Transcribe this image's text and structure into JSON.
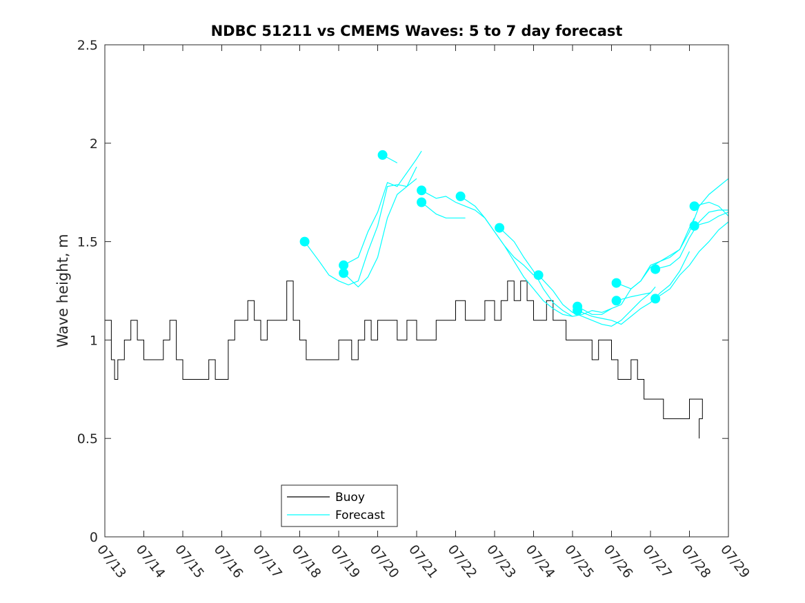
{
  "chart_data": {
    "type": "line",
    "title": "NDBC 51211 vs CMEMS Waves: 5 to 7 day forecast",
    "xlabel": "",
    "ylabel": "Wave height, m",
    "xlim": [
      "07/13",
      "07/29"
    ],
    "x_ticks": [
      "07/13",
      "07/14",
      "07/15",
      "07/16",
      "07/17",
      "07/18",
      "07/19",
      "07/20",
      "07/21",
      "07/22",
      "07/23",
      "07/24",
      "07/25",
      "07/26",
      "07/27",
      "07/28",
      "07/29"
    ],
    "ylim": [
      0,
      2.5
    ],
    "y_ticks": [
      "0",
      "0.5",
      "1",
      "1.5",
      "2",
      "2.5"
    ],
    "grid": false,
    "legend_placement": "bottom-left",
    "colors": {
      "buoy": "#000000",
      "forecast": "#00ffff"
    },
    "series": [
      {
        "name": "Buoy",
        "x": [
          "07/13 00:00",
          "07/13 04:00",
          "07/13 06:00",
          "07/13 08:00",
          "07/13 12:00",
          "07/13 16:00",
          "07/13 20:00",
          "07/14 00:00",
          "07/14 04:00",
          "07/14 08:00",
          "07/14 12:00",
          "07/14 16:00",
          "07/14 20:00",
          "07/15 00:00",
          "07/15 04:00",
          "07/15 08:00",
          "07/15 12:00",
          "07/15 16:00",
          "07/15 20:00",
          "07/16 00:00",
          "07/16 04:00",
          "07/16 08:00",
          "07/16 12:00",
          "07/16 16:00",
          "07/16 20:00",
          "07/17 00:00",
          "07/17 04:00",
          "07/17 08:00",
          "07/17 12:00",
          "07/17 16:00",
          "07/17 20:00",
          "07/18 00:00",
          "07/18 04:00",
          "07/18 08:00",
          "07/18 12:00",
          "07/18 16:00",
          "07/18 20:00",
          "07/19 00:00",
          "07/19 04:00",
          "07/19 08:00",
          "07/19 12:00",
          "07/19 16:00",
          "07/19 20:00",
          "07/20 00:00",
          "07/20 06:00",
          "07/20 12:00",
          "07/20 18:00",
          "07/21 00:00",
          "07/21 06:00",
          "07/21 12:00",
          "07/21 18:00",
          "07/22 00:00",
          "07/22 06:00",
          "07/22 12:00",
          "07/22 18:00",
          "07/23 00:00",
          "07/23 04:00",
          "07/23 08:00",
          "07/23 12:00",
          "07/23 16:00",
          "07/23 20:00",
          "07/24 00:00",
          "07/24 04:00",
          "07/24 08:00",
          "07/24 12:00",
          "07/24 16:00",
          "07/24 20:00",
          "07/25 00:00",
          "07/25 04:00",
          "07/25 08:00",
          "07/25 12:00",
          "07/25 16:00",
          "07/25 20:00",
          "07/26 00:00",
          "07/26 04:00",
          "07/26 08:00",
          "07/26 12:00",
          "07/26 16:00",
          "07/26 20:00",
          "07/27 00:00",
          "07/27 04:00",
          "07/27 08:00",
          "07/27 12:00",
          "07/27 16:00",
          "07/27 20:00",
          "07/28 00:00",
          "07/28 04:00",
          "07/28 08:00",
          "07/28 06:00"
        ],
        "values": [
          1.1,
          0.9,
          0.8,
          0.9,
          1.0,
          1.1,
          1.0,
          0.9,
          0.9,
          0.9,
          1.0,
          1.1,
          0.9,
          0.8,
          0.8,
          0.8,
          0.8,
          0.9,
          0.8,
          0.8,
          1.0,
          1.1,
          1.1,
          1.2,
          1.1,
          1.0,
          1.1,
          1.1,
          1.1,
          1.3,
          1.1,
          1.0,
          0.9,
          0.9,
          0.9,
          0.9,
          0.9,
          1.0,
          1.0,
          0.9,
          1.0,
          1.1,
          1.0,
          1.1,
          1.1,
          1.0,
          1.1,
          1.0,
          1.0,
          1.1,
          1.1,
          1.2,
          1.1,
          1.1,
          1.2,
          1.1,
          1.2,
          1.3,
          1.2,
          1.3,
          1.2,
          1.1,
          1.1,
          1.2,
          1.1,
          1.1,
          1.0,
          1.0,
          1.0,
          1.0,
          0.9,
          1.0,
          1.0,
          0.9,
          0.8,
          0.8,
          0.9,
          0.8,
          0.7,
          0.7,
          0.7,
          0.6,
          0.6,
          0.6,
          0.6,
          0.7,
          0.7,
          0.6,
          0.5
        ]
      },
      {
        "name": "Forecast",
        "segments": [
          {
            "x": [
              "07/18 03:00",
              "07/18 12:00",
              "07/18 18:00",
              "07/19 00:00",
              "07/19 06:00",
              "07/19 12:00",
              "07/19 18:00",
              "07/20 00:00",
              "07/20 06:00",
              "07/20 12:00",
              "07/20 18:00",
              "07/21 00:00"
            ],
            "values": [
              1.5,
              1.4,
              1.33,
              1.3,
              1.28,
              1.3,
              1.45,
              1.58,
              1.78,
              1.79,
              1.78,
              1.82
            ]
          },
          {
            "x": [
              "07/19 03:00",
              "07/19 12:00",
              "07/19 18:00",
              "07/20 00:00",
              "07/20 06:00",
              "07/20 12:00",
              "07/20 18:00",
              "07/21 00:00",
              "07/21 03:00"
            ],
            "values": [
              1.38,
              1.42,
              1.55,
              1.65,
              1.8,
              1.78,
              1.85,
              1.92,
              1.96
            ]
          },
          {
            "x": [
              "07/19 03:00",
              "07/19 12:00",
              "07/19 18:00",
              "07/20 00:00",
              "07/20 06:00",
              "07/20 12:00",
              "07/20 18:00",
              "07/21 00:00"
            ],
            "values": [
              1.34,
              1.27,
              1.32,
              1.42,
              1.62,
              1.74,
              1.78,
              1.88
            ]
          },
          {
            "x": [
              "07/20 03:00",
              "07/20 12:00"
            ],
            "values": [
              1.94,
              1.9
            ]
          },
          {
            "x": [
              "07/21 03:00",
              "07/21 12:00",
              "07/21 18:00",
              "07/22 00:00",
              "07/22 06:00",
              "07/22 12:00",
              "07/22 18:00",
              "07/23 00:00",
              "07/23 06:00",
              "07/23 12:00",
              "07/23 18:00",
              "07/24 00:00"
            ],
            "values": [
              1.76,
              1.72,
              1.73,
              1.7,
              1.68,
              1.66,
              1.62,
              1.55,
              1.48,
              1.42,
              1.38,
              1.33
            ]
          },
          {
            "x": [
              "07/21 03:00",
              "07/21 12:00",
              "07/21 18:00",
              "07/22 00:00",
              "07/22 06:00"
            ],
            "values": [
              1.7,
              1.64,
              1.62,
              1.62,
              1.62
            ]
          },
          {
            "x": [
              "07/22 03:00",
              "07/22 12:00",
              "07/22 18:00",
              "07/23 00:00",
              "07/23 06:00",
              "07/23 12:00",
              "07/23 18:00",
              "07/24 00:00",
              "07/24 06:00",
              "07/24 12:00",
              "07/24 18:00",
              "07/25 00:00"
            ],
            "values": [
              1.73,
              1.68,
              1.62,
              1.55,
              1.48,
              1.4,
              1.32,
              1.26,
              1.2,
              1.16,
              1.13,
              1.12
            ]
          },
          {
            "x": [
              "07/23 03:00",
              "07/23 12:00",
              "07/23 18:00",
              "07/24 00:00",
              "07/24 06:00",
              "07/24 12:00",
              "07/24 18:00",
              "07/25 00:00",
              "07/25 06:00",
              "07/25 12:00",
              "07/25 18:00",
              "07/26 00:00"
            ],
            "values": [
              1.57,
              1.5,
              1.42,
              1.35,
              1.26,
              1.19,
              1.15,
              1.12,
              1.13,
              1.15,
              1.14,
              1.16
            ]
          },
          {
            "x": [
              "07/24 03:00",
              "07/24 12:00",
              "07/24 18:00",
              "07/25 00:00",
              "07/25 06:00",
              "07/25 12:00",
              "07/25 18:00",
              "07/26 00:00",
              "07/26 06:00",
              "07/26 12:00",
              "07/26 18:00",
              "07/27 00:00"
            ],
            "values": [
              1.33,
              1.25,
              1.18,
              1.14,
              1.12,
              1.1,
              1.08,
              1.07,
              1.1,
              1.15,
              1.2,
              1.24
            ]
          },
          {
            "x": [
              "07/25 03:00",
              "07/25 12:00",
              "07/25 18:00",
              "07/26 00:00",
              "07/26 06:00",
              "07/26 12:00",
              "07/26 18:00",
              "07/27 00:00",
              "07/27 06:00",
              "07/27 12:00",
              "07/27 18:00",
              "07/28 00:00"
            ],
            "values": [
              1.15,
              1.12,
              1.11,
              1.1,
              1.08,
              1.12,
              1.16,
              1.19,
              1.24,
              1.28,
              1.35,
              1.45
            ]
          },
          {
            "x": [
              "07/25 03:00",
              "07/25 12:00",
              "07/25 18:00",
              "07/26 00:00",
              "07/26 06:00",
              "07/26 12:00",
              "07/26 18:00",
              "07/27 00:00",
              "07/27 06:00",
              "07/27 12:00",
              "07/27 18:00",
              "07/28 00:00",
              "07/28 03:00"
            ],
            "values": [
              1.17,
              1.13,
              1.13,
              1.16,
              1.18,
              1.26,
              1.3,
              1.37,
              1.4,
              1.43,
              1.46,
              1.57,
              1.62
            ]
          },
          {
            "x": [
              "07/26 03:00",
              "07/26 12:00",
              "07/26 18:00",
              "07/27 00:00",
              "07/27 06:00",
              "07/27 12:00",
              "07/27 18:00",
              "07/28 00:00",
              "07/28 06:00",
              "07/28 12:00",
              "07/28 18:00",
              "07/29 00:00"
            ],
            "values": [
              1.29,
              1.26,
              1.3,
              1.38,
              1.4,
              1.42,
              1.46,
              1.55,
              1.68,
              1.74,
              1.78,
              1.82
            ]
          },
          {
            "x": [
              "07/26 03:00",
              "07/26 12:00",
              "07/26 18:00",
              "07/27 00:00",
              "07/27 03:00"
            ],
            "values": [
              1.2,
              1.22,
              1.23,
              1.24,
              1.27
            ]
          },
          {
            "x": [
              "07/27 03:00",
              "07/27 12:00",
              "07/27 18:00",
              "07/28 00:00",
              "07/28 06:00",
              "07/28 12:00",
              "07/28 18:00",
              "07/29 00:00"
            ],
            "values": [
              1.36,
              1.38,
              1.42,
              1.52,
              1.6,
              1.65,
              1.66,
              1.66
            ]
          },
          {
            "x": [
              "07/27 03:00",
              "07/27 12:00",
              "07/27 18:00",
              "07/28 00:00",
              "07/28 06:00",
              "07/28 12:00",
              "07/28 18:00",
              "07/29 00:00"
            ],
            "values": [
              1.21,
              1.26,
              1.33,
              1.38,
              1.45,
              1.5,
              1.56,
              1.6
            ]
          },
          {
            "x": [
              "07/28 03:00",
              "07/28 12:00",
              "07/28 18:00",
              "07/29 00:00"
            ],
            "values": [
              1.68,
              1.7,
              1.68,
              1.63
            ]
          },
          {
            "x": [
              "07/28 03:00",
              "07/28 12:00",
              "07/28 18:00",
              "07/29 00:00"
            ],
            "values": [
              1.58,
              1.6,
              1.63,
              1.65
            ]
          }
        ],
        "markers": {
          "x": [
            "07/18 03:00",
            "07/19 03:00",
            "07/19 03:00",
            "07/20 03:00",
            "07/21 03:00",
            "07/21 03:00",
            "07/22 03:00",
            "07/23 03:00",
            "07/24 03:00",
            "07/25 03:00",
            "07/25 03:00",
            "07/26 03:00",
            "07/26 03:00",
            "07/27 03:00",
            "07/27 03:00",
            "07/28 03:00",
            "07/28 03:00"
          ],
          "values": [
            1.5,
            1.38,
            1.34,
            1.94,
            1.76,
            1.7,
            1.73,
            1.57,
            1.33,
            1.17,
            1.15,
            1.29,
            1.2,
            1.36,
            1.21,
            1.68,
            1.58
          ]
        }
      }
    ]
  }
}
